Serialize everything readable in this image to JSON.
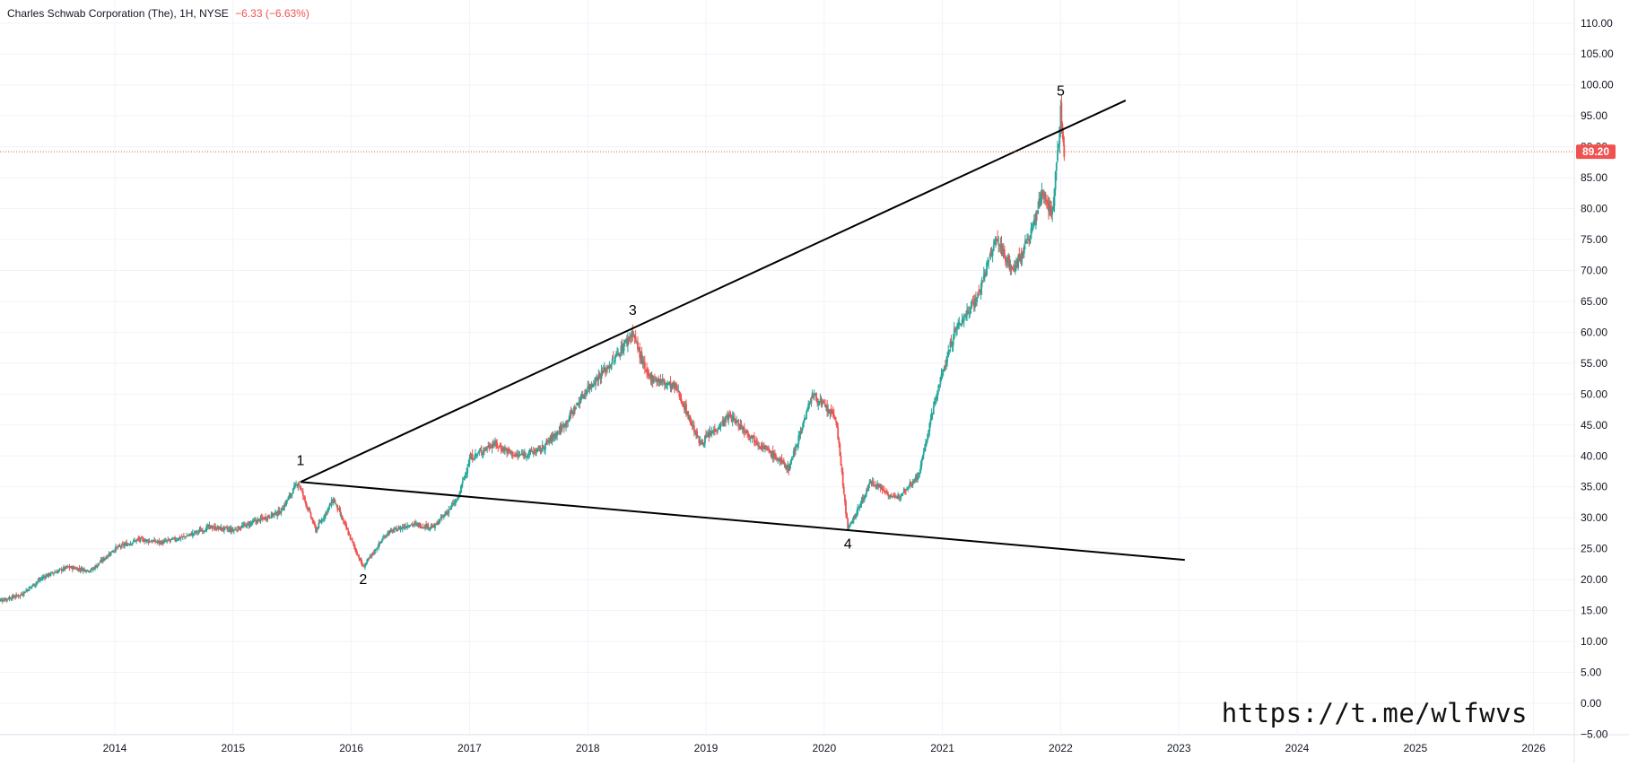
{
  "header": {
    "symbol": "Charles Schwab Corporation (The), 1H, NYSE",
    "change": "−6.33 (−6.63%)"
  },
  "watermark": "https://t.me/wlfwvs",
  "colors": {
    "up": "#26a69a",
    "down": "#ef5350",
    "line": "#000000",
    "grid": "#f0f3fa",
    "axis_text": "#131722",
    "price_label_bg": "#ef5350"
  },
  "chart_data": {
    "type": "candlestick",
    "title": "",
    "xlabel": "",
    "ylabel": "",
    "ylim": [
      -5,
      112
    ],
    "xlim": [
      2013.0,
      2026.7
    ],
    "grid": true,
    "y_ticks": [
      110,
      105,
      100,
      95,
      90,
      85,
      80,
      75,
      70,
      65,
      60,
      55,
      50,
      45,
      40,
      35,
      30,
      25,
      20,
      15,
      10,
      5,
      0,
      -5
    ],
    "y_tick_labels": [
      "110.00",
      "105.00",
      "100.00",
      "95.00",
      "90.00",
      "85.00",
      "80.00",
      "75.00",
      "70.00",
      "65.00",
      "60.00",
      "55.00",
      "50.00",
      "45.00",
      "40.00",
      "35.00",
      "30.00",
      "25.00",
      "20.00",
      "15.00",
      "10.00",
      "5.00",
      "0.00",
      "−5.00"
    ],
    "x_ticks": [
      2014,
      2015,
      2016,
      2017,
      2018,
      2019,
      2020,
      2021,
      2022,
      2023,
      2024,
      2025,
      2026
    ],
    "x_tick_labels": [
      "2014",
      "2015",
      "2016",
      "2017",
      "2018",
      "2019",
      "2020",
      "2021",
      "2022",
      "2023",
      "2024",
      "2025",
      "2026"
    ],
    "last_price": 89.2,
    "last_price_label": "89.20",
    "price_path": [
      [
        2013.0,
        16.5
      ],
      [
        2013.2,
        17.5
      ],
      [
        2013.4,
        20.5
      ],
      [
        2013.6,
        22
      ],
      [
        2013.8,
        21.5
      ],
      [
        2014.0,
        25
      ],
      [
        2014.2,
        26.5
      ],
      [
        2014.4,
        26
      ],
      [
        2014.6,
        27
      ],
      [
        2014.8,
        28.5
      ],
      [
        2015.0,
        28
      ],
      [
        2015.2,
        29.5
      ],
      [
        2015.4,
        31
      ],
      [
        2015.55,
        35.8
      ],
      [
        2015.7,
        28
      ],
      [
        2015.85,
        33
      ],
      [
        2016.1,
        22
      ],
      [
        2016.3,
        27.5
      ],
      [
        2016.5,
        29
      ],
      [
        2016.7,
        28.5
      ],
      [
        2016.9,
        33
      ],
      [
        2017.0,
        39.5
      ],
      [
        2017.2,
        42
      ],
      [
        2017.4,
        40
      ],
      [
        2017.6,
        41
      ],
      [
        2017.8,
        45
      ],
      [
        2018.0,
        51
      ],
      [
        2018.2,
        55
      ],
      [
        2018.38,
        60
      ],
      [
        2018.5,
        53
      ],
      [
        2018.75,
        51
      ],
      [
        2018.95,
        42
      ],
      [
        2019.2,
        46.5
      ],
      [
        2019.45,
        42
      ],
      [
        2019.7,
        38
      ],
      [
        2019.9,
        50
      ],
      [
        2020.1,
        46
      ],
      [
        2020.2,
        28
      ],
      [
        2020.4,
        36
      ],
      [
        2020.6,
        33
      ],
      [
        2020.8,
        37
      ],
      [
        2020.95,
        50
      ],
      [
        2021.1,
        60
      ],
      [
        2021.3,
        66
      ],
      [
        2021.45,
        75
      ],
      [
        2021.6,
        70
      ],
      [
        2021.75,
        76
      ],
      [
        2021.85,
        83
      ],
      [
        2021.93,
        79
      ],
      [
        2022.0,
        95.5
      ],
      [
        2022.03,
        89.2
      ]
    ],
    "trendlines": [
      {
        "from": [
          2015.57,
          35.8
        ],
        "to": [
          2022.55,
          97.5
        ]
      },
      {
        "from": [
          2015.57,
          35.8
        ],
        "to": [
          2023.05,
          23.2
        ]
      }
    ],
    "annotations": [
      {
        "text": "1",
        "x": 2015.57,
        "y": 38.5
      },
      {
        "text": "2",
        "x": 2016.1,
        "y": 19.3
      },
      {
        "text": "3",
        "x": 2018.38,
        "y": 62.8
      },
      {
        "text": "4",
        "x": 2020.2,
        "y": 25.0
      },
      {
        "text": "5",
        "x": 2022.0,
        "y": 98.3
      }
    ]
  }
}
